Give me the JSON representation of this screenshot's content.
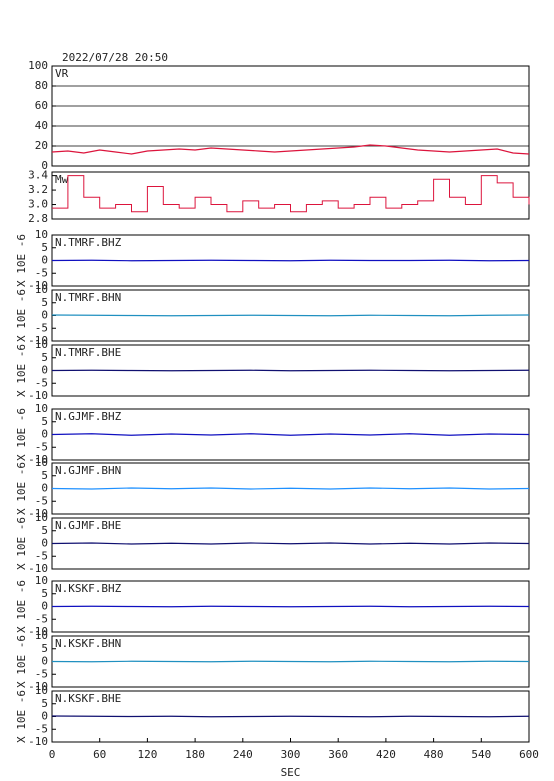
{
  "chart_data": [
    {
      "type": "line",
      "title": "2022/07/28 20:50",
      "label": "VR",
      "color": "#dc143c",
      "grid": true,
      "xlim": [
        0,
        600
      ],
      "ylim": [
        0,
        100
      ],
      "yticks": [
        0,
        20,
        40,
        60,
        80,
        100
      ],
      "x": [
        0,
        20,
        40,
        60,
        80,
        100,
        120,
        140,
        160,
        180,
        200,
        220,
        240,
        260,
        280,
        300,
        320,
        340,
        360,
        380,
        400,
        420,
        440,
        460,
        480,
        500,
        520,
        540,
        560,
        580,
        600
      ],
      "values": [
        14,
        15,
        13,
        16,
        14,
        12,
        15,
        16,
        17,
        16,
        18,
        17,
        16,
        15,
        14,
        15,
        16,
        17,
        18,
        19,
        21,
        20,
        18,
        16,
        15,
        14,
        15,
        16,
        17,
        13,
        12
      ]
    },
    {
      "type": "line",
      "label": "Mw",
      "color": "#dc143c",
      "step": true,
      "xlim": [
        0,
        600
      ],
      "ylim": [
        2.8,
        3.45
      ],
      "yticks": [
        2.8,
        {
          "value": 3.0,
          "label": "3.0"
        },
        3.2,
        3.4
      ],
      "x": [
        0,
        20,
        40,
        60,
        80,
        100,
        120,
        140,
        160,
        180,
        200,
        220,
        240,
        260,
        280,
        300,
        320,
        340,
        360,
        380,
        400,
        420,
        440,
        460,
        480,
        500,
        520,
        540,
        560,
        580,
        600
      ],
      "values": [
        2.95,
        3.4,
        3.1,
        2.95,
        3.0,
        2.9,
        3.25,
        3.0,
        2.95,
        3.1,
        3.0,
        2.9,
        3.05,
        2.95,
        3.0,
        2.9,
        3.0,
        3.05,
        2.95,
        3.0,
        3.1,
        2.95,
        3.0,
        3.05,
        3.35,
        3.1,
        3.0,
        3.4,
        3.3,
        3.1,
        3.0
      ]
    },
    {
      "type": "line",
      "label": "N.TMRF.BHZ",
      "y_label": "X 10E -6",
      "color": "#1010c0",
      "xlim": [
        0,
        600
      ],
      "ylim": [
        -10,
        10
      ],
      "yticks": [
        -10,
        -5,
        0,
        5,
        10
      ],
      "x": [
        0,
        50,
        100,
        150,
        200,
        250,
        300,
        350,
        400,
        450,
        500,
        550,
        600
      ],
      "values": [
        0,
        0.1,
        -0.1,
        0,
        0.1,
        0,
        -0.1,
        0.1,
        0,
        0,
        0.1,
        -0.1,
        0
      ]
    },
    {
      "type": "line",
      "label": "N.TMRF.BHN",
      "y_label": "X 10E -6",
      "color": "#2090c0",
      "xlim": [
        0,
        600
      ],
      "ylim": [
        -10,
        10
      ],
      "yticks": [
        -10,
        -5,
        0,
        5,
        10
      ],
      "x": [
        0,
        50,
        100,
        150,
        200,
        250,
        300,
        350,
        400,
        450,
        500,
        550,
        600
      ],
      "values": [
        0.2,
        0.1,
        0,
        -0.1,
        0,
        0.1,
        0,
        -0.1,
        0.1,
        0,
        -0.1,
        0.1,
        0.2
      ]
    },
    {
      "type": "line",
      "label": "N.TMRF.BHE",
      "y_label": "X 10E -6",
      "color": "#101070",
      "xlim": [
        0,
        600
      ],
      "ylim": [
        -10,
        10
      ],
      "yticks": [
        -10,
        -5,
        0,
        5,
        10
      ],
      "x": [
        0,
        50,
        100,
        150,
        200,
        250,
        300,
        350,
        400,
        450,
        500,
        550,
        600
      ],
      "values": [
        0,
        0.1,
        0,
        -0.1,
        0,
        0.1,
        -0.1,
        0,
        0.1,
        0,
        -0.1,
        0,
        0.1
      ]
    },
    {
      "type": "line",
      "label": "N.GJMF.BHZ",
      "y_label": "X 10E -6",
      "color": "#1010c0",
      "xlim": [
        0,
        600
      ],
      "ylim": [
        -10,
        10
      ],
      "yticks": [
        -10,
        -5,
        0,
        5,
        10
      ],
      "x": [
        0,
        50,
        100,
        150,
        200,
        250,
        300,
        350,
        400,
        450,
        500,
        550,
        600
      ],
      "values": [
        0,
        0.3,
        -0.3,
        0.2,
        -0.2,
        0.3,
        -0.3,
        0.2,
        -0.2,
        0.3,
        -0.3,
        0.2,
        0
      ]
    },
    {
      "type": "line",
      "label": "N.GJMF.BHN",
      "y_label": "X 10E -6",
      "color": "#1e90ff",
      "xlim": [
        0,
        600
      ],
      "ylim": [
        -10,
        10
      ],
      "yticks": [
        -10,
        -5,
        0,
        5,
        10
      ],
      "x": [
        0,
        50,
        100,
        150,
        200,
        250,
        300,
        350,
        400,
        450,
        500,
        550,
        600
      ],
      "values": [
        0,
        -0.2,
        0.2,
        -0.1,
        0.2,
        -0.2,
        0.1,
        -0.2,
        0.2,
        -0.1,
        0.2,
        -0.2,
        0
      ]
    },
    {
      "type": "line",
      "label": "N.GJMF.BHE",
      "y_label": "X 10E -6",
      "color": "#101070",
      "xlim": [
        0,
        600
      ],
      "ylim": [
        -10,
        10
      ],
      "yticks": [
        -10,
        -5,
        0,
        5,
        10
      ],
      "x": [
        0,
        50,
        100,
        150,
        200,
        250,
        300,
        350,
        400,
        450,
        500,
        550,
        600
      ],
      "values": [
        0,
        0.2,
        -0.2,
        0.1,
        -0.2,
        0.2,
        -0.1,
        0.2,
        -0.2,
        0.1,
        -0.2,
        0.2,
        0
      ]
    },
    {
      "type": "line",
      "label": "N.KSKF.BHZ",
      "y_label": "X 10E -6",
      "color": "#1010c0",
      "xlim": [
        0,
        600
      ],
      "ylim": [
        -10,
        10
      ],
      "yticks": [
        -10,
        -5,
        0,
        5,
        10
      ],
      "x": [
        0,
        50,
        100,
        150,
        200,
        250,
        300,
        350,
        400,
        450,
        500,
        550,
        600
      ],
      "values": [
        0,
        0.1,
        0,
        -0.1,
        0.1,
        0,
        -0.1,
        0,
        0.1,
        -0.1,
        0,
        0.1,
        0
      ]
    },
    {
      "type": "line",
      "label": "N.KSKF.BHN",
      "y_label": "X 10E -6",
      "color": "#2090c0",
      "xlim": [
        0,
        600
      ],
      "ylim": [
        -10,
        10
      ],
      "yticks": [
        -10,
        -5,
        0,
        5,
        10
      ],
      "x": [
        0,
        50,
        100,
        150,
        200,
        250,
        300,
        350,
        400,
        450,
        500,
        550,
        600
      ],
      "values": [
        0,
        -0.1,
        0.1,
        0,
        -0.1,
        0.1,
        0,
        -0.1,
        0.1,
        0,
        -0.1,
        0.1,
        0
      ]
    },
    {
      "type": "line",
      "label": "N.KSKF.BHE",
      "y_label": "X 10E -6",
      "color": "#101070",
      "xlim": [
        0,
        600
      ],
      "ylim": [
        -10,
        10
      ],
      "yticks": [
        -10,
        -5,
        0,
        5,
        10
      ],
      "x": [
        0,
        50,
        100,
        150,
        200,
        250,
        300,
        350,
        400,
        450,
        500,
        550,
        600
      ],
      "values": [
        0.2,
        0.1,
        0,
        0.1,
        -0.1,
        0,
        0.1,
        0,
        -0.1,
        0.1,
        0,
        -0.1,
        0.1
      ],
      "x_label": "SEC",
      "xticks": [
        0,
        60,
        120,
        180,
        240,
        300,
        360,
        420,
        480,
        540,
        600
      ]
    }
  ]
}
